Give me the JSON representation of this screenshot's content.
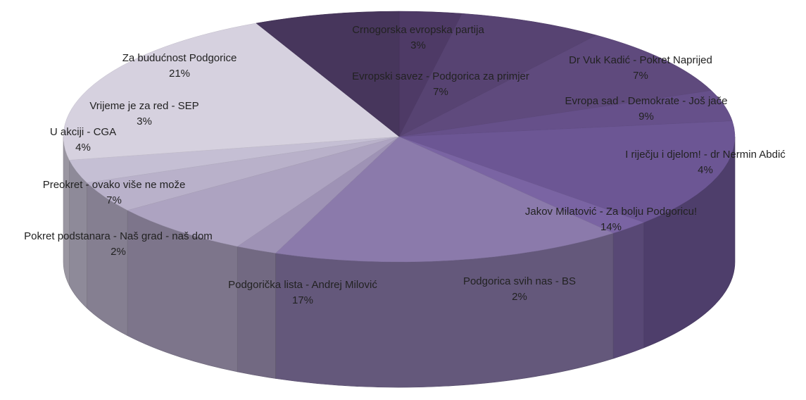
{
  "chart_data": {
    "type": "pie",
    "style": "3d",
    "title": "",
    "slices": [
      {
        "label": "Crnogorska evropska partija",
        "value": 3,
        "display": "3%",
        "color": "#4e3a66"
      },
      {
        "label": "Dr Vuk Kadić - Pokret Naprijed",
        "value": 7,
        "display": "7%",
        "color": "#574372"
      },
      {
        "label": "Evropa sad - Demokrate - Još jače",
        "value": 9,
        "display": "9%",
        "color": "#5f4a7d"
      },
      {
        "label": "I riječju i djelom! - dr Nermin Abdić",
        "value": 4,
        "display": "4%",
        "color": "#66508a"
      },
      {
        "label": "Jakov Milatović - Za bolju Podgoricu!",
        "value": 14,
        "display": "14%",
        "color": "#6c5694"
      },
      {
        "label": "Podgorica svih nas - BS",
        "value": 2,
        "display": "2%",
        "color": "#7a64a3"
      },
      {
        "label": "Podgorička lista - Andrej Milović",
        "value": 17,
        "display": "17%",
        "color": "#8b7aab"
      },
      {
        "label": "Pokret podstanara - Naš grad - naš dom",
        "value": 2,
        "display": "2%",
        "color": "#9e92b5"
      },
      {
        "label": "Preokret - ovako više ne može",
        "value": 7,
        "display": "7%",
        "color": "#ada3c1"
      },
      {
        "label": "U akciji - CGA",
        "value": 4,
        "display": "4%",
        "color": "#b9b1ca"
      },
      {
        "label": "Vrijeme je za red - SEP",
        "value": 3,
        "display": "3%",
        "color": "#c5bfd4"
      },
      {
        "label": "Za budućnost Podgorice",
        "value": 21,
        "display": "21%",
        "color": "#d6d1df"
      },
      {
        "label": "Evropski savez - Podgorica za primjer",
        "value": 7,
        "display": "7%",
        "color": "#47365c"
      }
    ]
  }
}
